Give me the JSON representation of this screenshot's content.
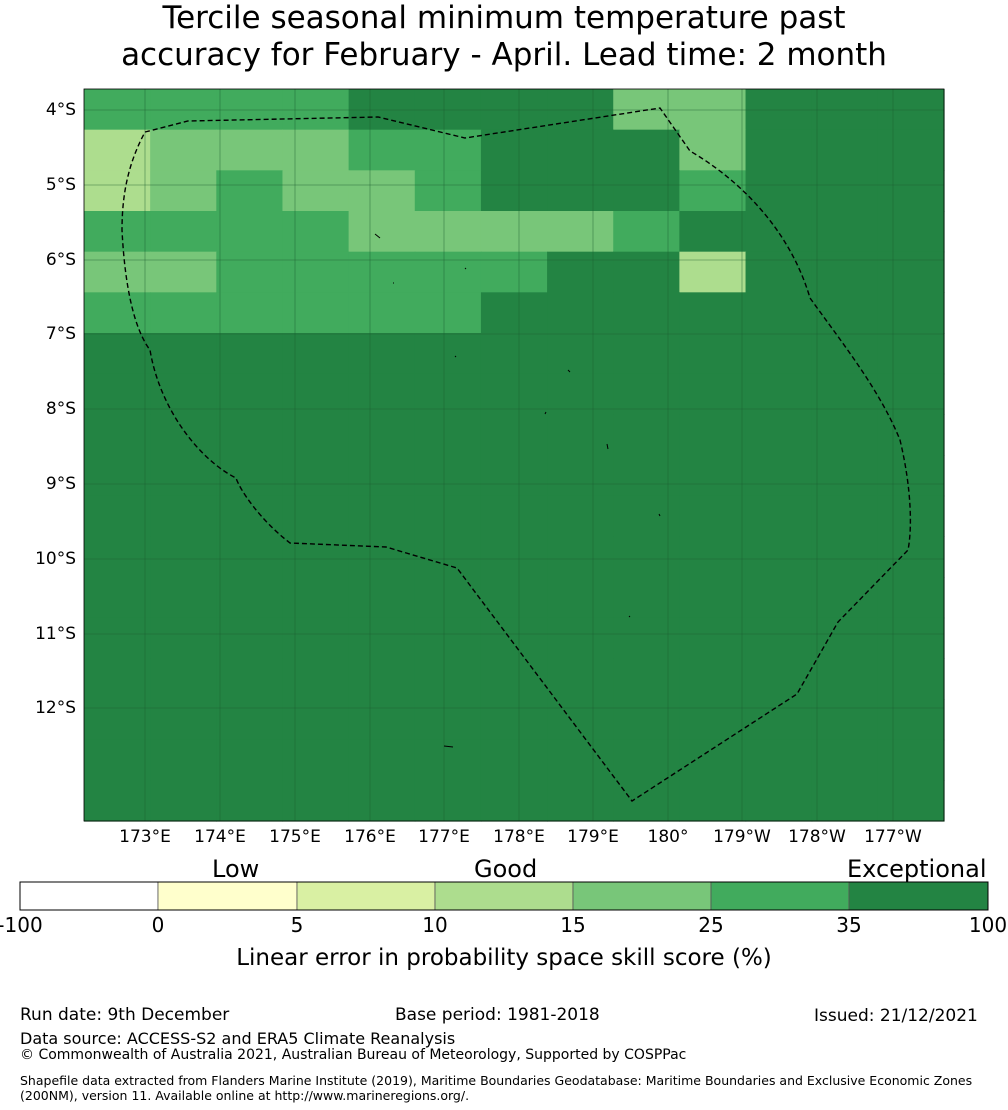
{
  "title": {
    "line1": "Tercile seasonal minimum temperature past",
    "line2": "accuracy for February - April. Lead time: 2 month"
  },
  "map": {
    "lat_labels": [
      "4°S",
      "5°S",
      "6°S",
      "7°S",
      "8°S",
      "9°S",
      "10°S",
      "11°S",
      "12°S"
    ],
    "lon_labels": [
      "173°E",
      "174°E",
      "175°E",
      "176°E",
      "177°E",
      "178°E",
      "179°E",
      "180°",
      "179°W",
      "178°W",
      "177°W"
    ],
    "level_colors": [
      "#ffffff",
      "#ffffcc",
      "#d9f0a3",
      "#addd8e",
      "#78c679",
      "#41ab5d",
      "#238443"
    ],
    "grid_levels": [
      "5555666644666",
      "3444556664666",
      "3454456665666",
      "5555444456666",
      "4455555663666",
      "5555556666666",
      "6666666666666",
      "6666666666666",
      "6666666666666",
      "6666666666666",
      "6666666666666",
      "6666666666666",
      "6666666666666",
      "6666666666666",
      "6666666666666",
      "6666666666666",
      "6666666666666",
      "6666666666666"
    ],
    "note": "grid_levels: index into level_colors; drawn as a coarse raster behind the EEZ boundary"
  },
  "colorbar": {
    "categories": [
      "Low",
      "Good",
      "Exceptional"
    ],
    "ticks": [
      "-100",
      "0",
      "5",
      "10",
      "15",
      "25",
      "35",
      "100"
    ],
    "label": "Linear error in probability space skill score (%)"
  },
  "footer": {
    "run_date": "Run date: 9th December",
    "base_period": "Base period: 1981-2018",
    "issued": "Issued: 21/12/2021",
    "data_source": "Data source: ACCESS-S2 and ERA5 Climate Reanalysis",
    "copyright": "© Commonwealth of Australia 2021, Australian Bureau of Meteorology, Supported by COSPPac",
    "shapefile": "Shapefile data extracted from Flanders Marine Institute (2019), Maritime Boundaries Geodatabase: Maritime Boundaries and Exclusive Economic Zones (200NM), version 11. Available online at http://www.marineregions.org/."
  }
}
